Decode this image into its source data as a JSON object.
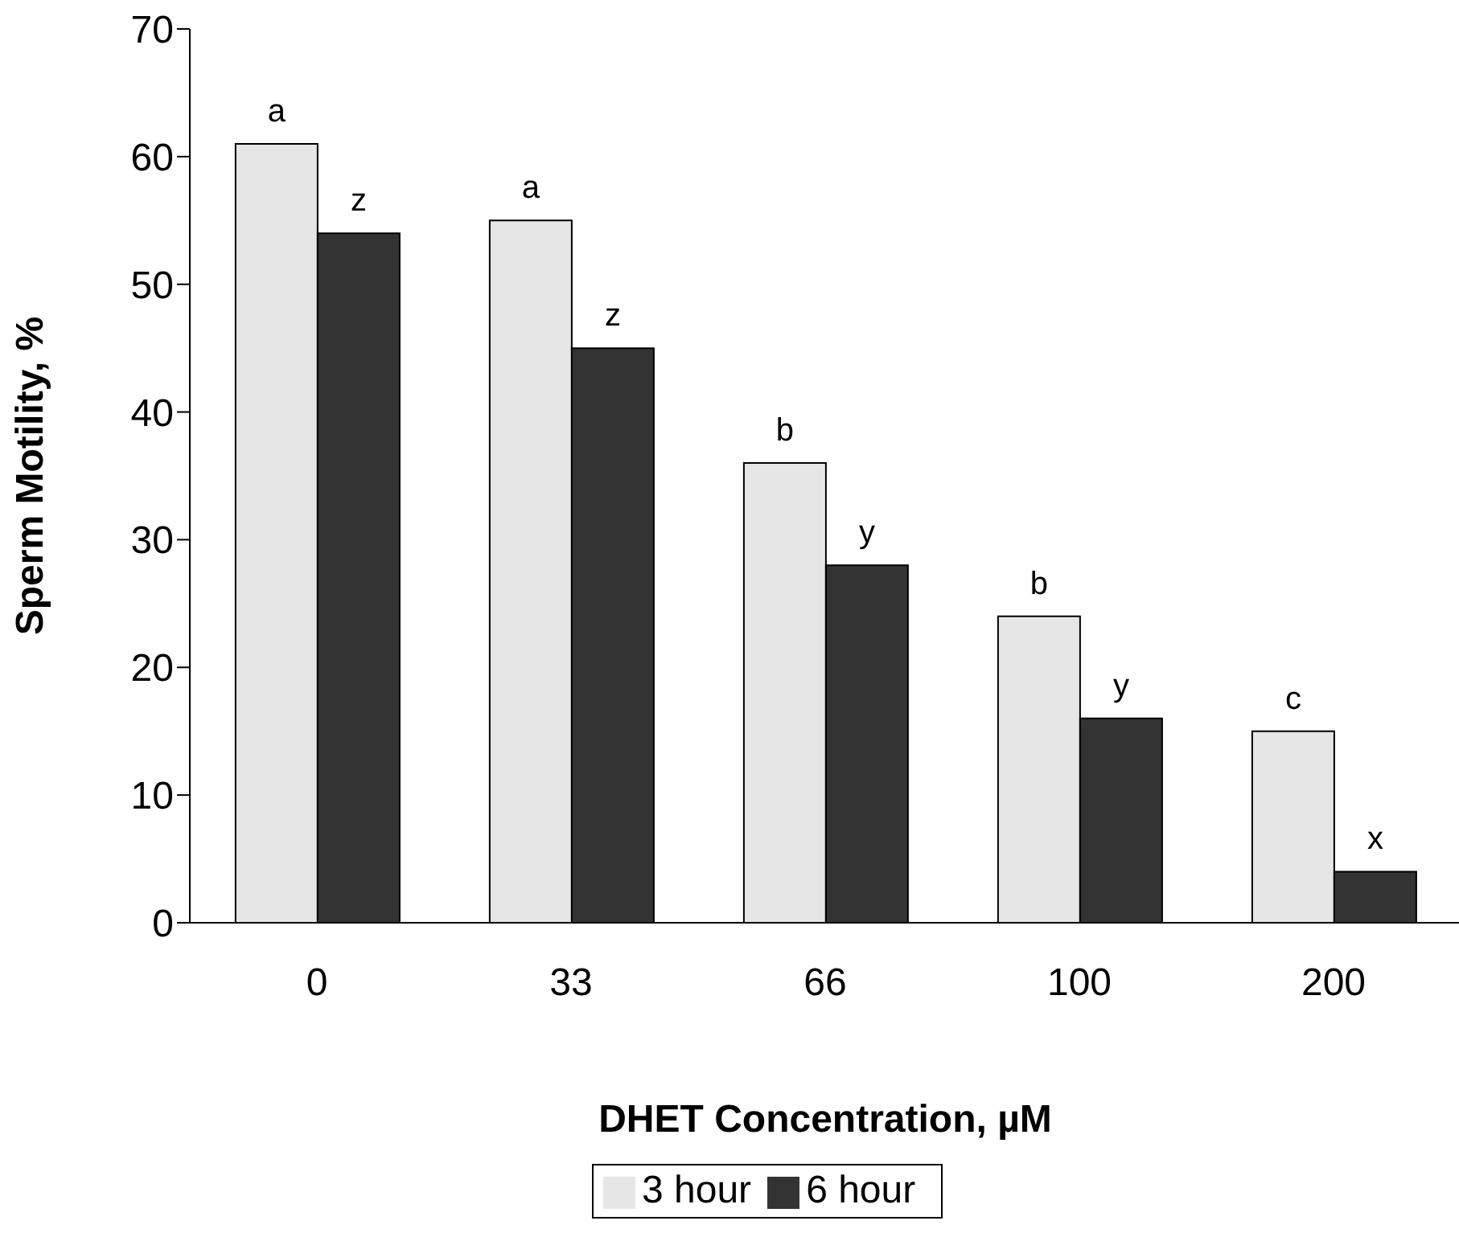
{
  "chart_data": {
    "type": "bar",
    "xlabel": "DHET Concentration, µM",
    "ylabel": "Sperm Motility, %",
    "categories": [
      "0",
      "33",
      "66",
      "100",
      "200"
    ],
    "series": [
      {
        "name": "3 hour",
        "color": "#e6e6e6",
        "values": [
          61,
          55,
          36,
          24,
          15
        ]
      },
      {
        "name": "6 hour",
        "color": "#333333",
        "values": [
          54,
          45,
          28,
          16,
          4
        ]
      }
    ],
    "ylim": [
      0,
      70
    ],
    "yticks": [
      0,
      10,
      20,
      30,
      40,
      50,
      60,
      70
    ],
    "grid": false,
    "legend": "bottom",
    "annotations": [
      {
        "text": "a",
        "x": "0",
        "y": 61
      },
      {
        "text": "z",
        "x": "0",
        "y": 54
      },
      {
        "text": "a",
        "x": "33",
        "y": 55
      },
      {
        "text": "z",
        "x": "33",
        "y": 45
      },
      {
        "text": "b",
        "x": "66",
        "y": 36
      },
      {
        "text": "y",
        "x": "66",
        "y": 28
      },
      {
        "text": "b",
        "x": "100",
        "y": 24
      },
      {
        "text": "y",
        "x": "100",
        "y": 16
      },
      {
        "text": "c",
        "x": "200",
        "y": 15
      },
      {
        "text": "x",
        "x": "200",
        "y": 4
      }
    ]
  }
}
